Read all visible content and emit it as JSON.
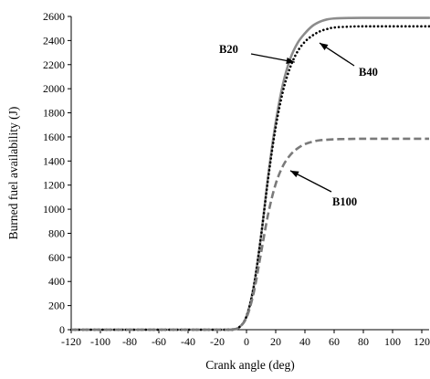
{
  "chart_data": {
    "type": "line",
    "title": "",
    "xlabel": "Crank angle (deg)",
    "ylabel": "Burned fuel availability (J)",
    "xlim": [
      -120,
      125
    ],
    "ylim": [
      0,
      2600
    ],
    "xticks": [
      "-120",
      "-100",
      "-80",
      "-60",
      "-40",
      "-20",
      "0",
      "20",
      "40",
      "60",
      "80",
      "100",
      "120"
    ],
    "yticks": [
      "0",
      "200",
      "400",
      "600",
      "800",
      "1000",
      "1200",
      "1400",
      "1600",
      "1800",
      "2000",
      "2200",
      "2400",
      "2600"
    ],
    "grid": false,
    "legend": "none (series labeled by annotation arrows)",
    "series": [
      {
        "name": "B20",
        "style": "solid",
        "color": "#8c8c8c",
        "points": [
          [
            -120,
            0
          ],
          [
            -20,
            0
          ],
          [
            -10,
            2
          ],
          [
            -5,
            20
          ],
          [
            0,
            110
          ],
          [
            5,
            360
          ],
          [
            10,
            780
          ],
          [
            15,
            1290
          ],
          [
            20,
            1720
          ],
          [
            25,
            2040
          ],
          [
            30,
            2250
          ],
          [
            35,
            2380
          ],
          [
            40,
            2460
          ],
          [
            45,
            2520
          ],
          [
            50,
            2555
          ],
          [
            55,
            2575
          ],
          [
            60,
            2583
          ],
          [
            70,
            2587
          ],
          [
            80,
            2588
          ],
          [
            100,
            2588
          ],
          [
            125,
            2588
          ]
        ]
      },
      {
        "name": "B40",
        "style": "dotted",
        "color": "#000000",
        "points": [
          [
            -120,
            0
          ],
          [
            -20,
            0
          ],
          [
            -10,
            2
          ],
          [
            -5,
            20
          ],
          [
            0,
            110
          ],
          [
            5,
            360
          ],
          [
            10,
            780
          ],
          [
            15,
            1270
          ],
          [
            20,
            1680
          ],
          [
            25,
            1980
          ],
          [
            30,
            2180
          ],
          [
            35,
            2310
          ],
          [
            40,
            2390
          ],
          [
            45,
            2440
          ],
          [
            50,
            2475
          ],
          [
            55,
            2495
          ],
          [
            60,
            2508
          ],
          [
            70,
            2515
          ],
          [
            80,
            2518
          ],
          [
            100,
            2518
          ],
          [
            125,
            2518
          ]
        ]
      },
      {
        "name": "B100",
        "style": "dashed",
        "color": "#7a7a7a",
        "points": [
          [
            -120,
            0
          ],
          [
            -20,
            0
          ],
          [
            -10,
            2
          ],
          [
            -5,
            20
          ],
          [
            0,
            100
          ],
          [
            5,
            310
          ],
          [
            10,
            640
          ],
          [
            15,
            970
          ],
          [
            20,
            1210
          ],
          [
            25,
            1360
          ],
          [
            30,
            1450
          ],
          [
            35,
            1505
          ],
          [
            40,
            1540
          ],
          [
            45,
            1560
          ],
          [
            50,
            1572
          ],
          [
            60,
            1580
          ],
          [
            70,
            1583
          ],
          [
            80,
            1585
          ],
          [
            100,
            1585
          ],
          [
            125,
            1585
          ]
        ]
      }
    ],
    "annotations": [
      {
        "text": "B20",
        "arrow_to": [
          33,
          2220
        ]
      },
      {
        "text": "B40",
        "arrow_to": [
          50,
          2380
        ]
      },
      {
        "text": "B100",
        "arrow_to": [
          30,
          1320
        ]
      }
    ]
  }
}
